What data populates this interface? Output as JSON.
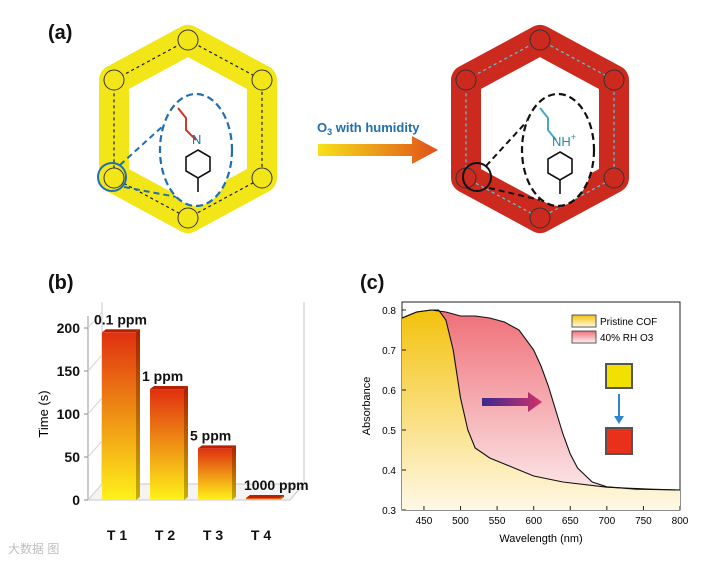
{
  "panels": {
    "a": "(a)",
    "b": "(b)",
    "c": "(c)"
  },
  "scheme": {
    "arrow_label_main": "O",
    "arrow_label_sub": "3",
    "arrow_label_rest": " with humidity",
    "left_group": "N",
    "right_group": "NH",
    "right_charge": "+",
    "left_color": "#f2e619",
    "right_color": "#cc2a1e"
  },
  "watermark": "大数据 图",
  "chart_data": [
    {
      "type": "bar",
      "title": "",
      "categories": [
        "T 1",
        "T 2",
        "T 3",
        "T 4"
      ],
      "values": [
        195,
        129,
        60,
        1
      ],
      "bar_labels": [
        "0.1 ppm",
        "1 ppm",
        "5 ppm",
        "1000 ppm"
      ],
      "ylabel": "Time (s)",
      "xlabel": "",
      "ylim": [
        0,
        200
      ],
      "yticks": [
        0,
        50,
        100,
        150,
        200
      ],
      "colors": {
        "top": "#e03010",
        "bottom": "#fff21a"
      }
    },
    {
      "type": "area",
      "xlabel": "Wavelength (nm)",
      "ylabel": "Absorbance",
      "xlim": [
        420,
        800
      ],
      "ylim": [
        0.3,
        0.82
      ],
      "xticks": [
        450,
        500,
        550,
        600,
        650,
        700,
        750,
        800
      ],
      "yticks": [
        0.3,
        0.4,
        0.5,
        0.6,
        0.7,
        0.8
      ],
      "legend": [
        "Pristine COF",
        "40% RH O3"
      ],
      "legend_position": "top-right",
      "series": [
        {
          "name": "Pristine COF",
          "color": "#f5c400",
          "x": [
            420,
            440,
            460,
            470,
            480,
            490,
            500,
            510,
            520,
            540,
            560,
            580,
            600,
            640,
            700,
            760,
            800
          ],
          "y": [
            0.78,
            0.795,
            0.8,
            0.8,
            0.775,
            0.7,
            0.58,
            0.5,
            0.455,
            0.43,
            0.415,
            0.4,
            0.385,
            0.37,
            0.357,
            0.352,
            0.35
          ]
        },
        {
          "name": "40% RH O3",
          "color": "#e8404a",
          "x": [
            420,
            440,
            460,
            480,
            500,
            520,
            540,
            560,
            580,
            600,
            610,
            620,
            630,
            640,
            650,
            660,
            680,
            700,
            740,
            800
          ],
          "y": [
            0.78,
            0.795,
            0.8,
            0.795,
            0.785,
            0.785,
            0.78,
            0.77,
            0.75,
            0.7,
            0.66,
            0.61,
            0.55,
            0.49,
            0.44,
            0.405,
            0.37,
            0.358,
            0.352,
            0.35
          ]
        }
      ]
    }
  ]
}
